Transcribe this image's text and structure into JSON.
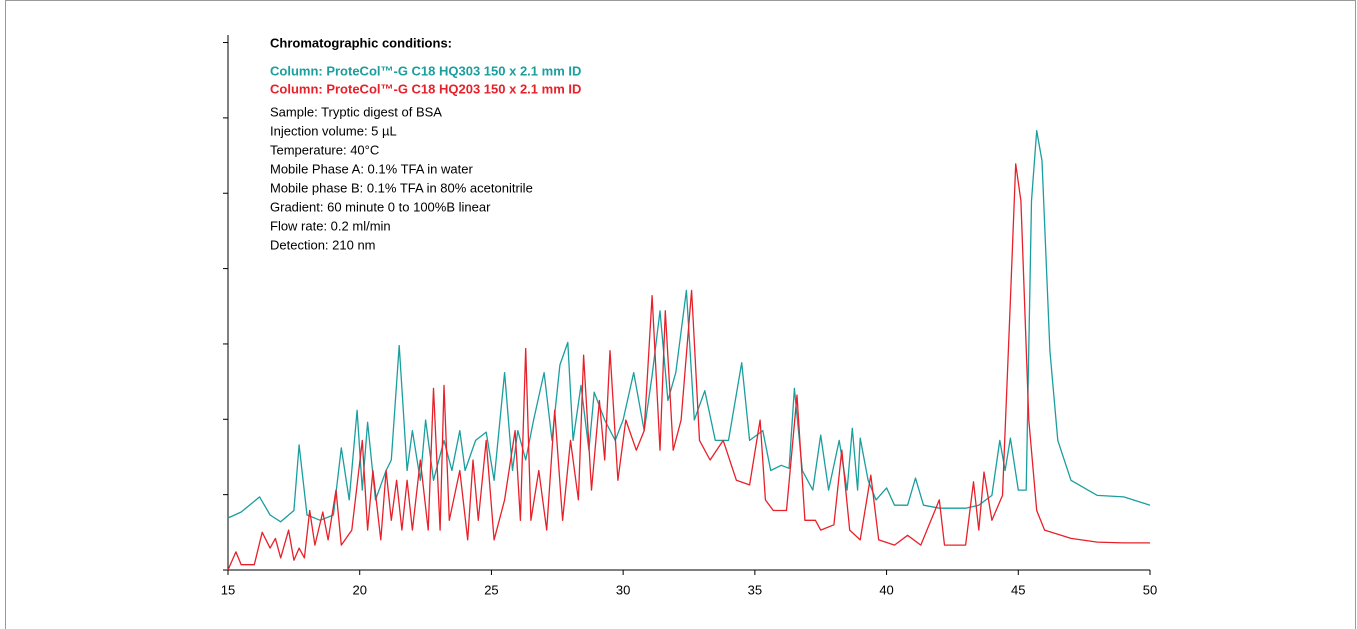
{
  "chart_data": {
    "type": "line",
    "title": "Chromatographic conditions:",
    "annotations": [
      "Sample: Tryptic digest of BSA",
      "Injection volume: 5 µL",
      "Temperature: 40°C",
      "Mobile Phase A: 0.1% TFA in water",
      "Mobile phase B: 0.1% TFA in 80% acetonitrile",
      "Gradient: 60 minute 0 to 100%B linear",
      "Flow rate: 0.2 ml/min",
      "Detection: 210 nm"
    ],
    "xlim": [
      15,
      50
    ],
    "xticks": [
      15,
      20,
      25,
      30,
      35,
      40,
      45,
      50
    ],
    "ylim": [
      0,
      7.1
    ],
    "yticks": [
      0,
      1,
      2,
      3,
      4,
      5,
      6,
      7
    ],
    "series": [
      {
        "name": "Column: ProteCol™-G C18 HQ303 150 x 2.1 mm ID",
        "color": "#1a9e9e",
        "x": [
          15,
          15.5,
          16.2,
          16.6,
          17,
          17.5,
          17.7,
          18,
          18.5,
          19,
          19.3,
          19.6,
          19.9,
          20.1,
          20.3,
          20.6,
          21,
          21.2,
          21.5,
          21.8,
          22,
          22.3,
          22.5,
          22.8,
          23.2,
          23.5,
          23.8,
          24,
          24.4,
          24.8,
          25.1,
          25.5,
          25.8,
          26,
          26.3,
          26.6,
          27,
          27.3,
          27.6,
          27.9,
          28.1,
          28.4,
          28.7,
          28.9,
          29.3,
          29.7,
          30,
          30.4,
          30.8,
          31.1,
          31.4,
          31.7,
          32,
          32.4,
          32.7,
          33.1,
          33.5,
          34,
          34.5,
          34.8,
          35.3,
          35.6,
          36,
          36.3,
          36.5,
          36.8,
          37.2,
          37.5,
          37.8,
          38.2,
          38.5,
          38.7,
          38.9,
          39,
          39.3,
          39.6,
          40,
          40.3,
          40.8,
          41.1,
          41.4,
          42,
          43,
          43.5,
          44,
          44.3,
          44.5,
          44.7,
          45,
          45.3,
          45.5,
          45.7,
          45.9,
          46.2,
          46.5,
          47,
          48,
          49,
          50
        ],
        "values": [
          0.69,
          0.77,
          0.97,
          0.73,
          0.64,
          0.79,
          1.66,
          0.73,
          0.66,
          0.73,
          1.62,
          0.93,
          2.12,
          1.06,
          1.96,
          0.93,
          1.32,
          1.46,
          2.98,
          1.32,
          1.85,
          1.19,
          1.99,
          1.19,
          1.72,
          1.32,
          1.85,
          1.32,
          1.72,
          1.83,
          1.19,
          2.62,
          1.32,
          1.85,
          1.46,
          1.99,
          2.62,
          1.72,
          2.72,
          3.02,
          1.72,
          2.45,
          1.59,
          2.36,
          1.99,
          1.72,
          1.99,
          2.62,
          1.85,
          2.58,
          3.44,
          2.25,
          2.62,
          3.71,
          1.99,
          2.38,
          1.72,
          1.72,
          2.75,
          1.72,
          1.85,
          1.32,
          1.39,
          1.35,
          2.41,
          1.32,
          1.06,
          1.79,
          1.06,
          1.72,
          1.06,
          1.88,
          1.06,
          1.75,
          1.19,
          0.93,
          1.09,
          0.86,
          0.86,
          1.22,
          0.86,
          0.82,
          0.82,
          0.86,
          0.99,
          1.72,
          1.32,
          1.75,
          1.06,
          1.06,
          4.9,
          5.83,
          5.43,
          2.91,
          1.72,
          1.19,
          0.99,
          0.97,
          0.86
        ]
      },
      {
        "name": "Column: ProteCol™-G C18 HQ203 150 x 2.1 mm ID",
        "color": "#e8202a",
        "x": [
          15,
          15.3,
          15.5,
          16,
          16.3,
          16.6,
          16.8,
          17,
          17.3,
          17.5,
          17.7,
          17.9,
          18.1,
          18.3,
          18.6,
          18.8,
          19.1,
          19.3,
          19.7,
          20.1,
          20.3,
          20.5,
          20.8,
          21,
          21.2,
          21.4,
          21.6,
          21.8,
          22,
          22.3,
          22.6,
          22.8,
          23.05,
          23.2,
          23.4,
          23.8,
          24.1,
          24.3,
          24.5,
          24.8,
          25.1,
          25.5,
          25.9,
          26.1,
          26.3,
          26.5,
          26.8,
          27.1,
          27.4,
          27.7,
          28,
          28.3,
          28.5,
          28.8,
          29.1,
          29.3,
          29.5,
          29.8,
          30.1,
          30.5,
          30.8,
          31.1,
          31.4,
          31.6,
          31.9,
          32.2,
          32.6,
          32.9,
          33.3,
          33.8,
          34.3,
          34.8,
          35.2,
          35.4,
          35.7,
          36.2,
          36.6,
          36.9,
          37.3,
          37.5,
          38,
          38.3,
          38.6,
          39,
          39.4,
          39.7,
          40.3,
          40.8,
          41.3,
          42,
          42.2,
          43,
          43.3,
          43.5,
          43.7,
          44,
          44.4,
          44.7,
          44.9,
          45.1,
          45.4,
          45.7,
          46,
          47,
          48,
          49,
          50
        ],
        "values": [
          0,
          0.24,
          0.07,
          0.07,
          0.5,
          0.29,
          0.42,
          0.16,
          0.53,
          0.13,
          0.29,
          0.16,
          0.79,
          0.33,
          0.77,
          0.4,
          1.06,
          0.33,
          0.53,
          1.72,
          0.53,
          1.32,
          0.4,
          1.32,
          0.66,
          1.19,
          0.53,
          1.19,
          0.53,
          1.46,
          0.53,
          2.41,
          0.53,
          2.45,
          0.66,
          1.32,
          0.4,
          1.46,
          0.66,
          1.72,
          0.4,
          0.93,
          1.85,
          0.66,
          2.94,
          0.66,
          1.32,
          0.53,
          2.12,
          0.66,
          1.72,
          0.93,
          2.85,
          1.06,
          2.25,
          1.46,
          2.91,
          1.19,
          1.99,
          1.59,
          1.85,
          3.64,
          1.59,
          3.44,
          1.59,
          1.99,
          3.71,
          1.72,
          1.46,
          1.72,
          1.19,
          1.13,
          1.99,
          0.93,
          0.79,
          0.79,
          2.32,
          0.66,
          0.66,
          0.53,
          0.6,
          1.59,
          0.53,
          0.4,
          1.26,
          0.4,
          0.33,
          0.46,
          0.33,
          0.93,
          0.33,
          0.33,
          1.17,
          0.53,
          1.3,
          0.66,
          0.99,
          3.58,
          5.39,
          4.9,
          1.99,
          0.79,
          0.53,
          0.42,
          0.37,
          0.36,
          0.36
        ]
      }
    ]
  }
}
